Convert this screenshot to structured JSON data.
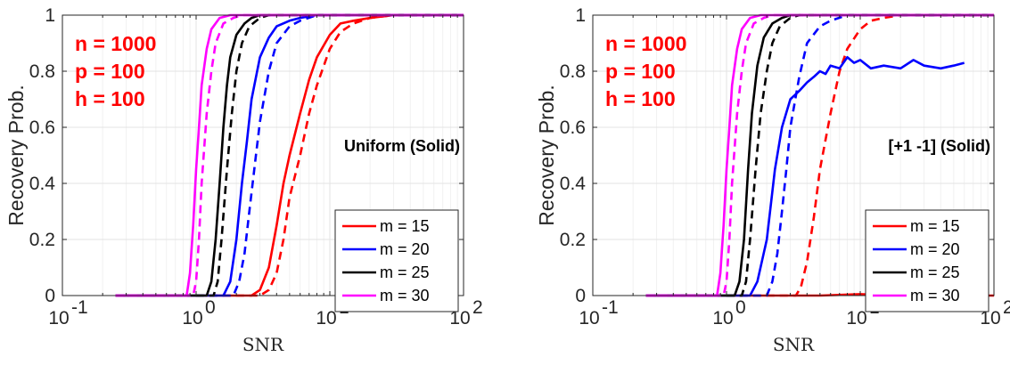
{
  "chart_data": [
    {
      "type": "line",
      "xscale": "log",
      "xlim": [
        0.1,
        100
      ],
      "ylim": [
        0,
        1
      ],
      "xlabel": "SNR",
      "ylabel": "Recovery Prob.",
      "xticks": [
        "10",
        "10",
        "10",
        "10"
      ],
      "xtick_exponents": [
        "-1",
        "0",
        "1",
        "2"
      ],
      "yticks": [
        "0",
        "0.2",
        "0.4",
        "0.6",
        "0.8",
        "1"
      ],
      "grid": true,
      "annotations": [
        "n = 1000",
        "p = 100",
        "h = 100"
      ],
      "curve_title": "Uniform (Solid)",
      "legend_position": "bottom-right",
      "series": [
        {
          "name": "m = 15",
          "color": "#ff0000",
          "style": "solid",
          "x": [
            0.25,
            2.6,
            3.0,
            3.5,
            4.0,
            4.5,
            5.0,
            6.0,
            7.0,
            8.0,
            10.0,
            12.0,
            15.0,
            20.0,
            30.0,
            100.0
          ],
          "y": [
            0,
            0,
            0.02,
            0.1,
            0.25,
            0.4,
            0.5,
            0.65,
            0.77,
            0.85,
            0.93,
            0.97,
            0.98,
            0.99,
            1.0,
            1.0
          ]
        },
        {
          "name": "",
          "color": "#ff0000",
          "style": "dashed",
          "x": [
            0.25,
            3.0,
            3.5,
            4.0,
            4.5,
            5.0,
            6.0,
            7.0,
            8.0,
            10.0,
            12.0,
            15.0,
            20.0,
            30.0,
            100.0
          ],
          "y": [
            0,
            0,
            0.02,
            0.08,
            0.2,
            0.35,
            0.5,
            0.65,
            0.75,
            0.88,
            0.94,
            0.97,
            0.99,
            1.0,
            1.0
          ]
        },
        {
          "name": "m = 20",
          "color": "#0000ff",
          "style": "solid",
          "x": [
            0.25,
            1.6,
            1.8,
            2.0,
            2.2,
            2.4,
            2.6,
            3.0,
            3.5,
            4.0,
            5.0,
            6.0,
            8.0,
            100.0
          ],
          "y": [
            0,
            0,
            0.05,
            0.2,
            0.4,
            0.55,
            0.7,
            0.85,
            0.92,
            0.96,
            0.98,
            0.99,
            1.0,
            1.0
          ]
        },
        {
          "name": "",
          "color": "#0000ff",
          "style": "dashed",
          "x": [
            0.25,
            1.9,
            2.1,
            2.3,
            2.5,
            2.8,
            3.0,
            3.5,
            4.0,
            5.0,
            6.0,
            8.0,
            100.0
          ],
          "y": [
            0,
            0,
            0.05,
            0.15,
            0.3,
            0.5,
            0.62,
            0.8,
            0.9,
            0.96,
            0.98,
            1.0,
            1.0
          ]
        },
        {
          "name": "m = 25",
          "color": "#000000",
          "style": "solid",
          "x": [
            0.25,
            1.2,
            1.3,
            1.4,
            1.5,
            1.6,
            1.7,
            1.8,
            2.0,
            2.3,
            2.6,
            3.0,
            100.0
          ],
          "y": [
            0,
            0,
            0.05,
            0.2,
            0.4,
            0.6,
            0.75,
            0.85,
            0.93,
            0.97,
            0.99,
            1.0,
            1.0
          ]
        },
        {
          "name": "",
          "color": "#000000",
          "style": "dashed",
          "x": [
            0.25,
            1.35,
            1.45,
            1.55,
            1.7,
            1.85,
            2.0,
            2.2,
            2.5,
            3.0,
            3.5,
            100.0
          ],
          "y": [
            0,
            0,
            0.05,
            0.2,
            0.45,
            0.65,
            0.8,
            0.9,
            0.96,
            0.99,
            1.0,
            1.0
          ]
        },
        {
          "name": "m = 30",
          "color": "#ff00ff",
          "style": "solid",
          "x": [
            0.25,
            0.85,
            0.9,
            0.95,
            1.0,
            1.05,
            1.1,
            1.2,
            1.3,
            1.5,
            1.8,
            100.0
          ],
          "y": [
            0,
            0,
            0.08,
            0.25,
            0.45,
            0.6,
            0.75,
            0.88,
            0.95,
            0.99,
            1.0,
            1.0
          ]
        },
        {
          "name": "",
          "color": "#ff00ff",
          "style": "dashed",
          "x": [
            0.25,
            0.95,
            1.0,
            1.05,
            1.1,
            1.2,
            1.3,
            1.4,
            1.6,
            1.9,
            2.2,
            100.0
          ],
          "y": [
            0,
            0,
            0.05,
            0.2,
            0.4,
            0.65,
            0.8,
            0.9,
            0.97,
            0.99,
            1.0,
            1.0
          ]
        }
      ]
    },
    {
      "type": "line",
      "xscale": "log",
      "xlim": [
        0.1,
        100
      ],
      "ylim": [
        0,
        1
      ],
      "xlabel": "SNR",
      "ylabel": "Recovery Prob.",
      "xticks": [
        "10",
        "10",
        "10",
        "10"
      ],
      "xtick_exponents": [
        "-1",
        "0",
        "1",
        "2"
      ],
      "yticks": [
        "0",
        "0.2",
        "0.4",
        "0.6",
        "0.8",
        "1"
      ],
      "grid": true,
      "annotations": [
        "n = 1000",
        "p = 100",
        "h = 100"
      ],
      "curve_title": "[+1 -1] (Solid)",
      "legend_position": "bottom-right",
      "series": [
        {
          "name": "m = 15",
          "color": "#ff0000",
          "style": "solid",
          "x": [
            0.25,
            5.0,
            10.0,
            20.0,
            40.0,
            60.0,
            100.0
          ],
          "y": [
            0,
            0,
            0.005,
            0,
            0.005,
            0,
            0
          ]
        },
        {
          "name": "",
          "color": "#ff0000",
          "style": "dashed",
          "x": [
            0.25,
            3.3,
            3.6,
            4.0,
            4.5,
            5.0,
            6.0,
            7.0,
            8.0,
            10.0,
            12.0,
            15.0,
            20.0,
            30.0,
            100.0
          ],
          "y": [
            0,
            0,
            0.03,
            0.12,
            0.28,
            0.45,
            0.65,
            0.8,
            0.88,
            0.95,
            0.98,
            0.99,
            1.0,
            1.0,
            1.0
          ]
        },
        {
          "name": "m = 20",
          "color": "#0000ff",
          "style": "solid",
          "x": [
            0.25,
            1.5,
            1.7,
            2.0,
            2.3,
            2.6,
            3.0,
            3.5,
            4.0,
            4.5,
            5.0,
            5.5,
            6.0,
            7.0,
            8.0,
            9.0,
            10.0,
            12.0,
            15.0,
            20.0,
            25.0,
            30.0,
            40.0,
            50.0,
            60.0
          ],
          "y": [
            0,
            0,
            0.05,
            0.2,
            0.45,
            0.6,
            0.7,
            0.73,
            0.76,
            0.78,
            0.8,
            0.79,
            0.82,
            0.81,
            0.85,
            0.83,
            0.84,
            0.81,
            0.82,
            0.81,
            0.84,
            0.82,
            0.81,
            0.82,
            0.83
          ]
        },
        {
          "name": "",
          "color": "#0000ff",
          "style": "dashed",
          "x": [
            0.25,
            2.0,
            2.2,
            2.4,
            2.6,
            2.8,
            3.0,
            3.5,
            4.0,
            5.0,
            6.0,
            8.0,
            100.0
          ],
          "y": [
            0,
            0,
            0.05,
            0.15,
            0.3,
            0.45,
            0.6,
            0.78,
            0.9,
            0.96,
            0.98,
            1.0,
            1.0
          ]
        },
        {
          "name": "m = 25",
          "color": "#000000",
          "style": "solid",
          "x": [
            0.25,
            1.15,
            1.25,
            1.35,
            1.45,
            1.55,
            1.7,
            1.9,
            2.2,
            2.6,
            3.0,
            100.0
          ],
          "y": [
            0,
            0,
            0.05,
            0.2,
            0.45,
            0.65,
            0.82,
            0.92,
            0.97,
            0.99,
            1.0,
            1.0
          ]
        },
        {
          "name": "",
          "color": "#000000",
          "style": "dashed",
          "x": [
            0.25,
            1.3,
            1.4,
            1.5,
            1.65,
            1.8,
            2.0,
            2.2,
            2.5,
            3.0,
            3.5,
            100.0
          ],
          "y": [
            0,
            0,
            0.05,
            0.2,
            0.45,
            0.65,
            0.8,
            0.9,
            0.96,
            0.99,
            1.0,
            1.0
          ]
        },
        {
          "name": "m = 30",
          "color": "#ff00ff",
          "style": "solid",
          "x": [
            0.25,
            0.85,
            0.9,
            0.95,
            1.0,
            1.05,
            1.1,
            1.2,
            1.3,
            1.5,
            1.8,
            100.0
          ],
          "y": [
            0,
            0,
            0.08,
            0.25,
            0.45,
            0.6,
            0.75,
            0.88,
            0.95,
            0.99,
            1.0,
            1.0
          ]
        },
        {
          "name": "",
          "color": "#ff00ff",
          "style": "dashed",
          "x": [
            0.25,
            0.95,
            1.0,
            1.05,
            1.1,
            1.2,
            1.3,
            1.4,
            1.6,
            1.9,
            2.2,
            100.0
          ],
          "y": [
            0,
            0,
            0.05,
            0.2,
            0.4,
            0.65,
            0.8,
            0.9,
            0.97,
            0.99,
            1.0,
            1.0
          ]
        }
      ]
    }
  ]
}
